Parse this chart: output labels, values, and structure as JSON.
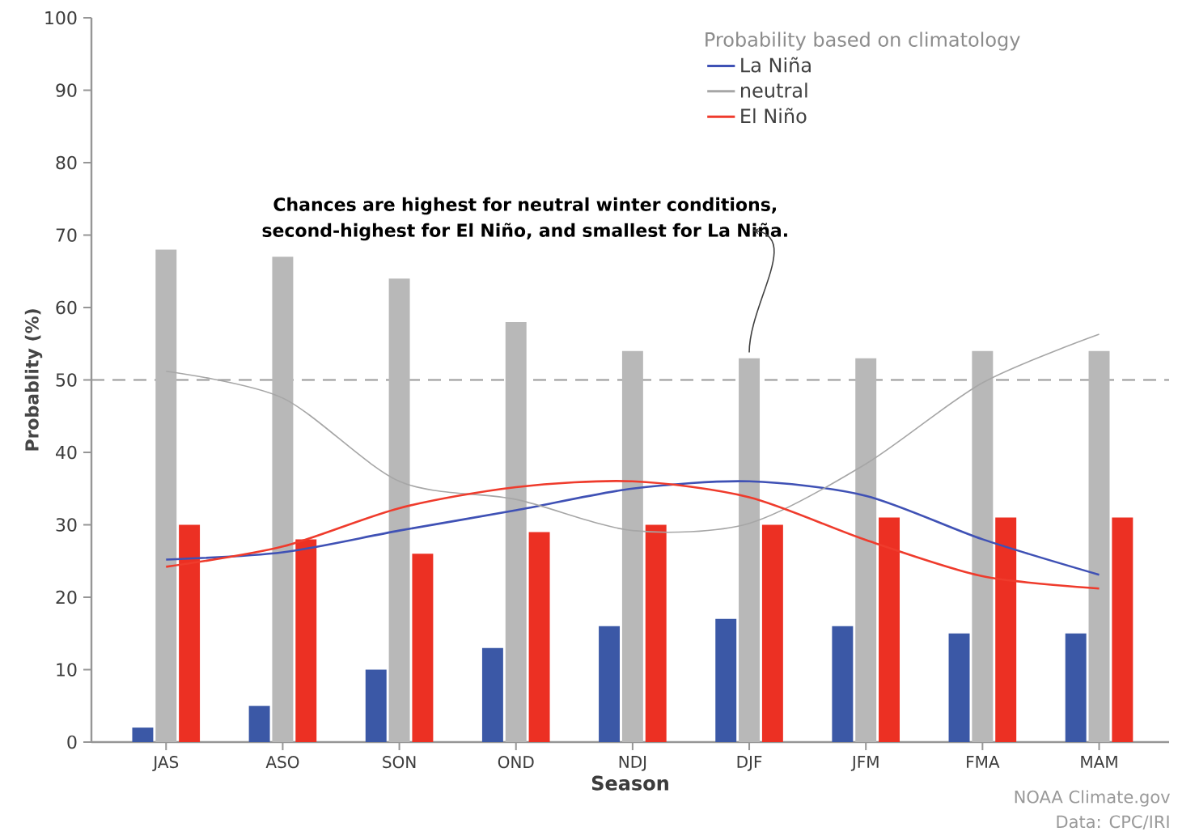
{
  "chart_data": {
    "type": "bar",
    "xlabel": "Season",
    "ylabel": "Probablity (%)",
    "legend_title": "Probability based on climatology",
    "categories": [
      "JAS",
      "ASO",
      "SON",
      "OND",
      "NDJ",
      "DJF",
      "JFM",
      "FMA",
      "MAM"
    ],
    "series": [
      {
        "color": "#3b58a6",
        "values": [
          2,
          5,
          10,
          13,
          16,
          17,
          16,
          15,
          15
        ]
      },
      {
        "color": "#b8b8b8",
        "values": [
          68,
          67,
          64,
          58,
          54,
          53,
          53,
          54,
          54
        ]
      },
      {
        "color": "#ec3023",
        "values": [
          30,
          28,
          26,
          29,
          30,
          30,
          31,
          31,
          31
        ]
      },
      {
        "type": "line",
        "name": "La Niña",
        "color": "#3f51b5",
        "values": [
          25.2,
          26.2,
          29.2,
          32,
          35,
          36,
          34,
          28,
          23.1
        ]
      },
      {
        "type": "line",
        "name": "neutral",
        "color": "#a6a6a6",
        "values": [
          51.2,
          47.5,
          36,
          33.5,
          29.2,
          30.2,
          38.4,
          49.6,
          56.3
        ]
      },
      {
        "type": "line",
        "name": "El Niño",
        "color": "#ef3b2c",
        "values": [
          24.2,
          27,
          32.3,
          35.2,
          36,
          33.8,
          27.9,
          22.9,
          21.2
        ]
      }
    ],
    "ylim": [
      0,
      100
    ],
    "yticks": [
      0,
      10,
      20,
      30,
      40,
      50,
      60,
      70,
      80,
      90,
      100
    ],
    "grid": false,
    "legend": "top right",
    "marker": "none",
    "line_style": "solid",
    "ref_lines": [
      {
        "axis": "y",
        "value": 50,
        "color": "#999999",
        "line_style": "dashed"
      }
    ],
    "annotations": [
      {
        "text": "Chances are highest for neutral winter conditions, second-highest for El Niño, and smallest for La Niña.",
        "x": "DJF",
        "y": 53
      },
      "NOAA Climate.gov",
      "Data: CPC/IRI"
    ]
  }
}
